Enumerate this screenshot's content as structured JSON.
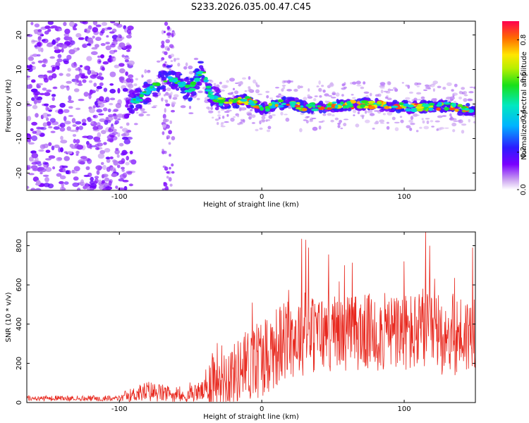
{
  "title": "S233.2026.035.00.47.C45",
  "chart_data": [
    {
      "type": "heatmap",
      "name": "spectrogram",
      "xlabel": "Height of straight line (km)",
      "ylabel": "Frequency (Hz)",
      "xlim": [
        -165,
        150
      ],
      "ylim": [
        -25,
        24
      ],
      "x_ticks": [
        -100,
        0,
        100
      ],
      "y_ticks": [
        -20,
        -10,
        0,
        10,
        20
      ],
      "colorbar": {
        "label": "Normalized spectral amplitude",
        "range": [
          0.0,
          0.9
        ],
        "ticks": [
          "0.0",
          "0.2",
          "0.4",
          "0.6",
          "0.8"
        ]
      },
      "ridge_track": [
        {
          "x": -95,
          "f": -1
        },
        {
          "x": -85,
          "f": 2
        },
        {
          "x": -75,
          "f": 5
        },
        {
          "x": -65,
          "f": 8
        },
        {
          "x": -58,
          "f": 6
        },
        {
          "x": -50,
          "f": 4
        },
        {
          "x": -42,
          "f": 10
        },
        {
          "x": -35,
          "f": 2
        },
        {
          "x": -25,
          "f": 0
        },
        {
          "x": -15,
          "f": 1
        },
        {
          "x": -10,
          "f": 1
        },
        {
          "x": 0,
          "f": -1.5
        },
        {
          "x": 10,
          "f": 0
        },
        {
          "x": 20,
          "f": 0.5
        },
        {
          "x": 30,
          "f": -1
        },
        {
          "x": 50,
          "f": -0.5
        },
        {
          "x": 70,
          "f": 0
        },
        {
          "x": 90,
          "f": -0.5
        },
        {
          "x": 110,
          "f": -1
        },
        {
          "x": 130,
          "f": -0.5
        },
        {
          "x": 148,
          "f": -2
        }
      ]
    },
    {
      "type": "line",
      "name": "snr",
      "xlabel": "Height of straight line (km)",
      "ylabel": "SNR (10 * v/v)",
      "xlim": [
        -165,
        150
      ],
      "ylim": [
        0,
        870
      ],
      "x_ticks": [
        -100,
        0,
        100
      ],
      "y_ticks": [
        0,
        200,
        400,
        600,
        800
      ],
      "color": "#e8281e",
      "envelope": [
        {
          "x": -165,
          "base": 15,
          "amp": 20
        },
        {
          "x": -100,
          "base": 15,
          "amp": 20
        },
        {
          "x": -95,
          "base": 25,
          "amp": 40
        },
        {
          "x": -80,
          "base": 40,
          "amp": 80
        },
        {
          "x": -65,
          "base": 30,
          "amp": 60
        },
        {
          "x": -55,
          "base": 20,
          "amp": 40
        },
        {
          "x": -45,
          "base": 40,
          "amp": 70
        },
        {
          "x": -38,
          "base": 40,
          "amp": 90
        },
        {
          "x": -36,
          "base": 80,
          "amp": 260
        },
        {
          "x": -20,
          "base": 100,
          "amp": 220
        },
        {
          "x": -5,
          "base": 150,
          "amp": 300
        },
        {
          "x": 10,
          "base": 220,
          "amp": 300
        },
        {
          "x": 25,
          "base": 280,
          "amp": 300
        },
        {
          "x": 60,
          "base": 300,
          "amp": 280
        },
        {
          "x": 110,
          "base": 290,
          "amp": 300
        },
        {
          "x": 150,
          "base": 280,
          "amp": 300
        }
      ],
      "peaks": [
        {
          "x": 28,
          "y": 835
        },
        {
          "x": 31,
          "y": 830
        },
        {
          "x": 33,
          "y": 790
        },
        {
          "x": 58,
          "y": 700
        },
        {
          "x": 115,
          "y": 870
        },
        {
          "x": 118,
          "y": 800
        },
        {
          "x": 148,
          "y": 790
        },
        {
          "x": 100,
          "y": 720
        }
      ]
    }
  ]
}
